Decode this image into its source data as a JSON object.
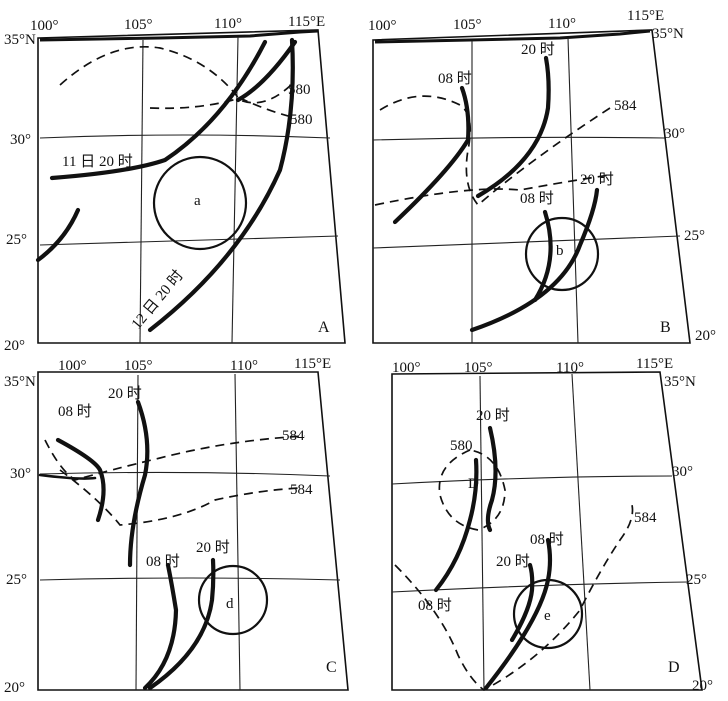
{
  "panels": {
    "A": {
      "letter": "A",
      "lon_labels": [
        "100°",
        "105°",
        "110°",
        "115°E"
      ],
      "lat_top": "35°N",
      "lat_mid": "30°",
      "lat_low": "25°",
      "lat_bottom": "20°",
      "front_label_1": "11 日 20 时",
      "front_label_2": "12 日 20 时",
      "contour_label_1": "580",
      "contour_label_2": "580",
      "circle_label": "a"
    },
    "B": {
      "letter": "B",
      "lon_labels": [
        "100°",
        "105°",
        "110°",
        "115°E"
      ],
      "lat_top": "35°N",
      "lat_mid": "30°",
      "lat_low": "25°",
      "lat_bottom": "20°",
      "time_1": "08 时",
      "time_2": "20 时",
      "time_3": "08 时",
      "time_4": "20 时",
      "contour_label": "584",
      "circle_label": "b"
    },
    "C": {
      "letter": "C",
      "lon_labels": [
        "100°",
        "105°",
        "110°",
        "115°E"
      ],
      "lat_top": "35°N",
      "lat_mid": "30°",
      "lat_low": "25°",
      "lat_bottom": "20°",
      "time_1": "08 时",
      "time_2": "20 时",
      "time_3": "08 时",
      "time_4": "20 时",
      "contour_label_1": "584",
      "contour_label_2": "584",
      "circle_label": "d"
    },
    "D": {
      "letter": "D",
      "lon_labels": [
        "100°",
        "105°",
        "110°",
        "115°E"
      ],
      "lat_top": "35°N",
      "lat_mid": "30°",
      "lat_low": "25°",
      "lat_bottom": "20°",
      "time_1": "20 时",
      "time_2": "08 时",
      "time_3": "08 时",
      "time_4": "20 时",
      "contour_label_1": "580",
      "contour_label_2": "584",
      "low_label": "D",
      "circle_label": "e"
    }
  }
}
